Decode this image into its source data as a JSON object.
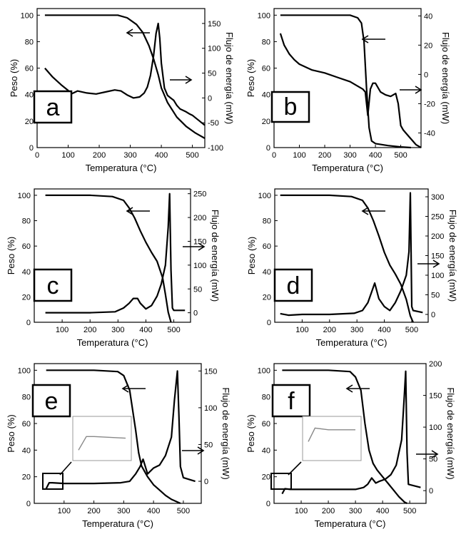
{
  "x_axis_title": "Temperatura (°C)",
  "y_left_title": "Peso (%)",
  "y_right_title": "Flujo de energía (mW)",
  "chart_data": [
    {
      "type": "line",
      "panel": "a",
      "xlim": [
        0,
        540
      ],
      "x_ticks": [
        0,
        100,
        200,
        300,
        400,
        500
      ],
      "ylim": [
        0,
        105
      ],
      "y_ticks": [
        0,
        20,
        40,
        60,
        80,
        100
      ],
      "y2lim": [
        -100,
        180
      ],
      "y2_ticks": [
        -100,
        -50,
        0,
        50,
        100,
        150
      ],
      "series": [
        {
          "name": "Peso",
          "axis": "left",
          "x": [
            25,
            100,
            200,
            260,
            290,
            320,
            340,
            360,
            375,
            390,
            400,
            420,
            450,
            480,
            510,
            540
          ],
          "y": [
            100,
            100,
            100,
            100,
            98,
            93,
            87,
            77,
            67,
            55,
            45,
            34,
            23,
            16,
            11,
            7
          ]
        },
        {
          "name": "Flujo de energía",
          "axis": "right",
          "x": [
            25,
            50,
            80,
            100,
            110,
            130,
            160,
            190,
            220,
            250,
            270,
            290,
            310,
            330,
            345,
            355,
            365,
            375,
            383,
            390,
            395,
            400,
            410,
            420,
            430,
            440,
            450,
            460,
            470,
            480,
            490,
            500,
            510,
            520,
            530,
            540
          ],
          "y": [
            60,
            42,
            25,
            15,
            8,
            14,
            10,
            8,
            12,
            16,
            14,
            6,
            0,
            2,
            10,
            22,
            45,
            85,
            130,
            150,
            120,
            70,
            20,
            5,
            0,
            -5,
            -15,
            -22,
            -25,
            -28,
            -32,
            -35,
            -40,
            -45,
            -50,
            -55
          ]
        }
      ],
      "annotations": [
        {
          "text": "←",
          "series": "Peso"
        },
        {
          "text": "→",
          "series": "Flujo de energía"
        }
      ],
      "inset": false
    },
    {
      "type": "line",
      "panel": "b",
      "xlim": [
        0,
        580
      ],
      "x_ticks": [
        0,
        100,
        200,
        300,
        400,
        500
      ],
      "ylim": [
        0,
        105
      ],
      "y_ticks": [
        0,
        20,
        40,
        60,
        80,
        100
      ],
      "y2lim": [
        -50,
        45
      ],
      "y2_ticks": [
        -40,
        -20,
        0,
        20,
        40
      ],
      "series": [
        {
          "name": "Peso",
          "axis": "left",
          "x": [
            25,
            100,
            200,
            300,
            330,
            345,
            355,
            365,
            375,
            385,
            400,
            450,
            500,
            540
          ],
          "y": [
            100,
            100,
            100,
            100,
            98,
            94,
            80,
            45,
            15,
            5,
            3,
            1.5,
            0.5,
            0
          ]
        },
        {
          "name": "Flujo de energía",
          "axis": "right",
          "x": [
            25,
            40,
            60,
            80,
            100,
            150,
            200,
            250,
            300,
            330,
            350,
            360,
            370,
            380,
            390,
            400,
            420,
            440,
            460,
            480,
            490,
            500,
            510,
            530,
            560,
            580
          ],
          "y": [
            28,
            20,
            14,
            10,
            7,
            3,
            1,
            -2,
            -5,
            -8,
            -10,
            -12,
            -28,
            -10,
            -6,
            -6,
            -12,
            -14,
            -15,
            -13,
            -20,
            -35,
            -38,
            -42,
            -48,
            -50
          ]
        }
      ],
      "annotations": [
        {
          "text": "←",
          "series": "Peso"
        },
        {
          "text": "→",
          "series": "Flujo de energía"
        }
      ],
      "inset": false
    },
    {
      "type": "line",
      "panel": "c",
      "xlim": [
        0,
        560
      ],
      "x_ticks": [
        100,
        200,
        300,
        400,
        500
      ],
      "ylim": [
        0,
        105
      ],
      "y_ticks": [
        0,
        20,
        40,
        60,
        80,
        100
      ],
      "y2lim": [
        -20,
        260
      ],
      "y2_ticks": [
        0,
        50,
        100,
        150,
        200,
        250
      ],
      "series": [
        {
          "name": "Peso",
          "axis": "left",
          "x": [
            40,
            100,
            200,
            280,
            320,
            340,
            360,
            380,
            400,
            420,
            440,
            460,
            470,
            480,
            490
          ],
          "y": [
            100,
            100,
            100,
            99,
            96,
            90,
            82,
            72,
            63,
            55,
            48,
            35,
            22,
            8,
            0
          ]
        },
        {
          "name": "Flujo de energía",
          "axis": "right",
          "x": [
            40,
            100,
            200,
            290,
            320,
            340,
            355,
            370,
            380,
            400,
            420,
            440,
            455,
            470,
            480,
            485,
            490,
            495,
            500,
            540
          ],
          "y": [
            0,
            0,
            0,
            2,
            10,
            20,
            30,
            30,
            20,
            8,
            15,
            35,
            60,
            100,
            180,
            250,
            90,
            10,
            5,
            5
          ]
        }
      ],
      "annotations": [
        {
          "text": "←",
          "series": "Peso"
        },
        {
          "text": "→",
          "series": "Flujo de energía"
        }
      ],
      "inset": false
    },
    {
      "type": "line",
      "panel": "d",
      "xlim": [
        0,
        560
      ],
      "x_ticks": [
        100,
        200,
        300,
        400,
        500
      ],
      "ylim": [
        0,
        105
      ],
      "y_ticks": [
        0,
        20,
        40,
        60,
        80,
        100
      ],
      "y2lim": [
        -20,
        320
      ],
      "y2_ticks": [
        0,
        50,
        100,
        150,
        200,
        250,
        300
      ],
      "series": [
        {
          "name": "Peso",
          "axis": "left",
          "x": [
            20,
            100,
            200,
            280,
            320,
            340,
            360,
            380,
            400,
            420,
            440,
            460,
            480,
            495,
            505
          ],
          "y": [
            100,
            100,
            100,
            99,
            96,
            90,
            80,
            68,
            55,
            45,
            38,
            30,
            18,
            5,
            0
          ]
        },
        {
          "name": "Flujo de energía",
          "axis": "right",
          "x": [
            20,
            50,
            100,
            200,
            290,
            320,
            340,
            355,
            365,
            380,
            400,
            420,
            440,
            460,
            480,
            490,
            495,
            500,
            505,
            540
          ],
          "y": [
            2,
            -2,
            0,
            0,
            3,
            10,
            30,
            60,
            80,
            40,
            20,
            10,
            30,
            60,
            100,
            160,
            310,
            20,
            10,
            5
          ]
        }
      ],
      "annotations": [
        {
          "text": "←",
          "series": "Peso"
        },
        {
          "text": "→",
          "series": "Flujo de energía"
        }
      ],
      "inset": false
    },
    {
      "type": "line",
      "panel": "e",
      "xlim": [
        0,
        560
      ],
      "x_ticks": [
        100,
        200,
        300,
        400,
        500
      ],
      "ylim": [
        0,
        105
      ],
      "y_ticks": [
        0,
        20,
        40,
        60,
        80,
        100
      ],
      "y2lim": [
        -30,
        160
      ],
      "y2_ticks": [
        0,
        50,
        100,
        150
      ],
      "series": [
        {
          "name": "Peso",
          "axis": "left",
          "x": [
            40,
            100,
            200,
            280,
            300,
            320,
            340,
            350,
            360,
            380,
            400,
            420,
            440,
            460,
            480,
            490
          ],
          "y": [
            100,
            100,
            100,
            99,
            96,
            85,
            55,
            38,
            28,
            20,
            14,
            10,
            6,
            3,
            1,
            0
          ]
        },
        {
          "name": "Flujo de energía",
          "axis": "right",
          "x": [
            40,
            50,
            60,
            100,
            200,
            290,
            320,
            340,
            355,
            365,
            380,
            400,
            420,
            440,
            460,
            470,
            480,
            485,
            490,
            500,
            540
          ],
          "y": [
            -10,
            -2,
            -2,
            -3,
            -3,
            -2,
            0,
            10,
            20,
            30,
            10,
            18,
            22,
            35,
            60,
            110,
            150,
            90,
            20,
            5,
            0
          ]
        }
      ],
      "annotations": [
        {
          "text": "←",
          "series": "Peso"
        },
        {
          "text": "→",
          "series": "Flujo de energía"
        }
      ],
      "inset": true
    },
    {
      "type": "line",
      "panel": "f",
      "xlim": [
        0,
        560
      ],
      "x_ticks": [
        100,
        200,
        300,
        400,
        500
      ],
      "ylim": [
        0,
        105
      ],
      "y_ticks": [
        0,
        20,
        40,
        60,
        80,
        100
      ],
      "y2lim": [
        -20,
        200
      ],
      "y2_ticks": [
        0,
        50,
        100,
        150,
        200
      ],
      "series": [
        {
          "name": "Peso",
          "axis": "left",
          "x": [
            30,
            100,
            200,
            280,
            300,
            320,
            335,
            350,
            365,
            380,
            400,
            420,
            440,
            460,
            480,
            490
          ],
          "y": [
            100,
            100,
            100,
            99,
            95,
            85,
            60,
            40,
            30,
            25,
            20,
            15,
            10,
            5,
            1,
            0
          ]
        },
        {
          "name": "Flujo de energía",
          "axis": "right",
          "x": [
            30,
            40,
            60,
            100,
            200,
            300,
            330,
            345,
            360,
            375,
            390,
            410,
            430,
            450,
            470,
            480,
            485,
            490,
            495,
            540
          ],
          "y": [
            -5,
            3,
            2,
            2,
            2,
            2,
            5,
            10,
            20,
            12,
            15,
            18,
            25,
            40,
            80,
            150,
            188,
            60,
            10,
            5
          ]
        }
      ],
      "annotations": [
        {
          "text": "←",
          "series": "Peso"
        },
        {
          "text": "→",
          "series": "Flujo de energía"
        }
      ],
      "inset": true
    }
  ]
}
